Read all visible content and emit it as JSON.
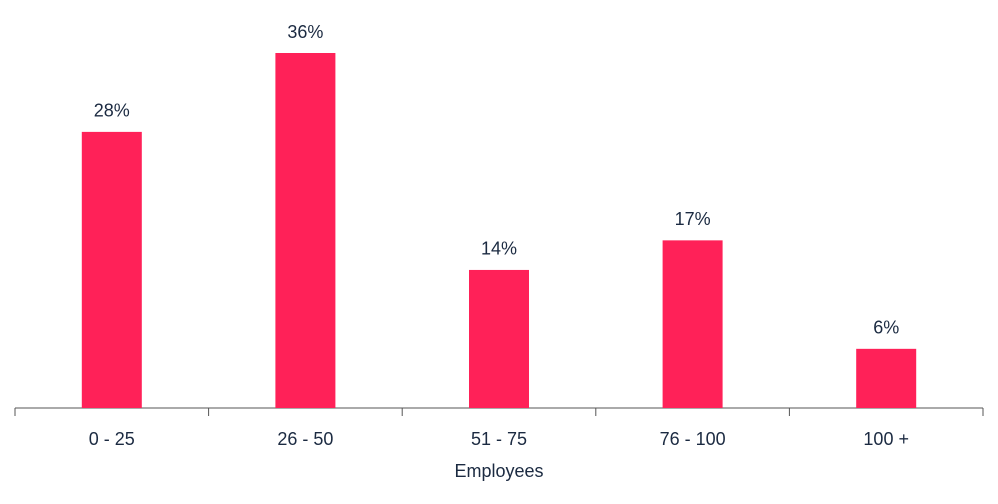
{
  "chart_data": {
    "type": "bar",
    "x_label": "Employees",
    "categories": [
      "0 - 25",
      "26 - 50",
      "51 - 75",
      "76 - 100",
      "100 +"
    ],
    "values": [
      28,
      36,
      14,
      17,
      6
    ],
    "value_labels": [
      "28%",
      "36%",
      "14%",
      "17%",
      "6%"
    ],
    "color": "#ff2158"
  }
}
